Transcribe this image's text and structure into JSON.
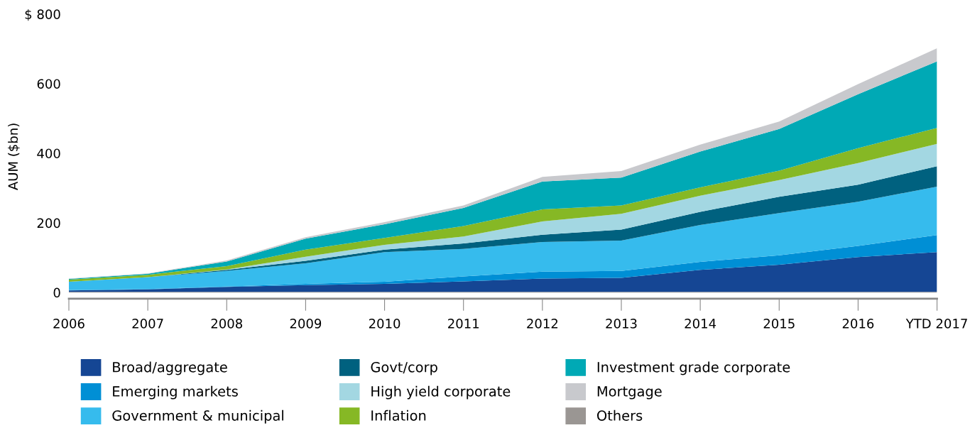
{
  "chart_data": {
    "type": "area",
    "stacked": true,
    "ylabel": "AUM ($bn)",
    "categories": [
      "2006",
      "2007",
      "2008",
      "2009",
      "2010",
      "2011",
      "2012",
      "2013",
      "2014",
      "2015",
      "2016",
      "YTD 2017"
    ],
    "ylim": [
      -18,
      800
    ],
    "yticks": [
      0,
      200,
      400,
      600,
      {
        "value": 800,
        "label": "$ 800"
      }
    ],
    "grid": false,
    "legend": "bottom",
    "series": [
      {
        "name": "Others",
        "color": "#9a9693",
        "values": [
          2,
          2,
          2,
          2,
          2,
          2,
          2,
          2,
          2,
          2,
          2,
          2
        ]
      },
      {
        "name": "Broad/aggregate",
        "color": "#154694",
        "values": [
          4,
          7,
          14,
          19,
          23,
          30,
          38,
          40,
          63,
          78,
          100,
          114
        ]
      },
      {
        "name": "Emerging markets",
        "color": "#008fd5",
        "values": [
          1,
          1,
          1,
          4,
          6,
          14,
          20,
          20,
          23,
          27,
          32,
          49
        ]
      },
      {
        "name": "Government & municipal",
        "color": "#36bbed",
        "values": [
          24,
          34,
          45,
          59,
          85,
          79,
          85,
          87,
          106,
          121,
          127,
          139
        ]
      },
      {
        "name": "Govt/corp",
        "color": "#00617f",
        "values": [
          0,
          0,
          3,
          7,
          7,
          16,
          21,
          32,
          38,
          47,
          49,
          59
        ]
      },
      {
        "name": "High yield corporate",
        "color": "#a3d7e2",
        "values": [
          0,
          0,
          1,
          12,
          14,
          20,
          38,
          45,
          46,
          48,
          62,
          64
        ]
      },
      {
        "name": "Inflation",
        "color": "#86b825",
        "values": [
          6,
          7,
          10,
          20,
          20,
          30,
          35,
          24,
          24,
          27,
          43,
          46
        ]
      },
      {
        "name": "Investment grade corporate",
        "color": "#00a9b5",
        "values": [
          2,
          3,
          13,
          32,
          39,
          52,
          80,
          80,
          103,
          120,
          155,
          191
        ]
      },
      {
        "name": "Mortgage",
        "color": "#c8c9cd",
        "values": [
          1,
          1,
          3,
          4,
          6,
          7,
          13,
          19,
          20,
          21,
          29,
          38
        ]
      }
    ]
  }
}
